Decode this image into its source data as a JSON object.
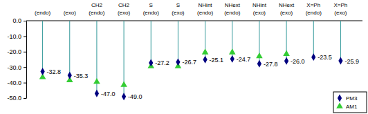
{
  "chart_data": {
    "type": "scatter",
    "categories": [
      "(endo)",
      "(exo)",
      "CH2 (endo)",
      "CH2 (exo)",
      "S (endo)",
      "S (exo)",
      "NHint (endo)",
      "NHext (endo)",
      "NHint (exo)",
      "NHext (exo)",
      "X=Ph (endo)",
      "X=Ph (exo)"
    ],
    "series": [
      {
        "name": "PM3",
        "color": "#000080",
        "marker": "diamond",
        "data_labels": true,
        "values": [
          -32.8,
          -35.3,
          -47.0,
          -49.0,
          -27.2,
          -26.7,
          -25.1,
          -24.7,
          -27.8,
          -26.0,
          -23.5,
          -25.9
        ]
      },
      {
        "name": "AM1",
        "color": "#33cc33",
        "marker": "triangle",
        "values": [
          -36.5,
          -38.5,
          -39.5,
          -41.5,
          -29.5,
          -29.5,
          -20.5,
          -20.5,
          -23.0,
          -21.5,
          null,
          null
        ]
      }
    ],
    "ylim": [
      -50,
      0
    ],
    "yticks": [
      {
        "value": 0,
        "label": "0.0"
      },
      {
        "value": -10,
        "label": "-10.0"
      },
      {
        "value": -20,
        "label": "-20.0"
      },
      {
        "value": -30,
        "label": "-30.0"
      },
      {
        "value": -40,
        "label": "-40.0"
      },
      {
        "value": -50,
        "label": "-50.0"
      }
    ],
    "legend": "lower right"
  }
}
